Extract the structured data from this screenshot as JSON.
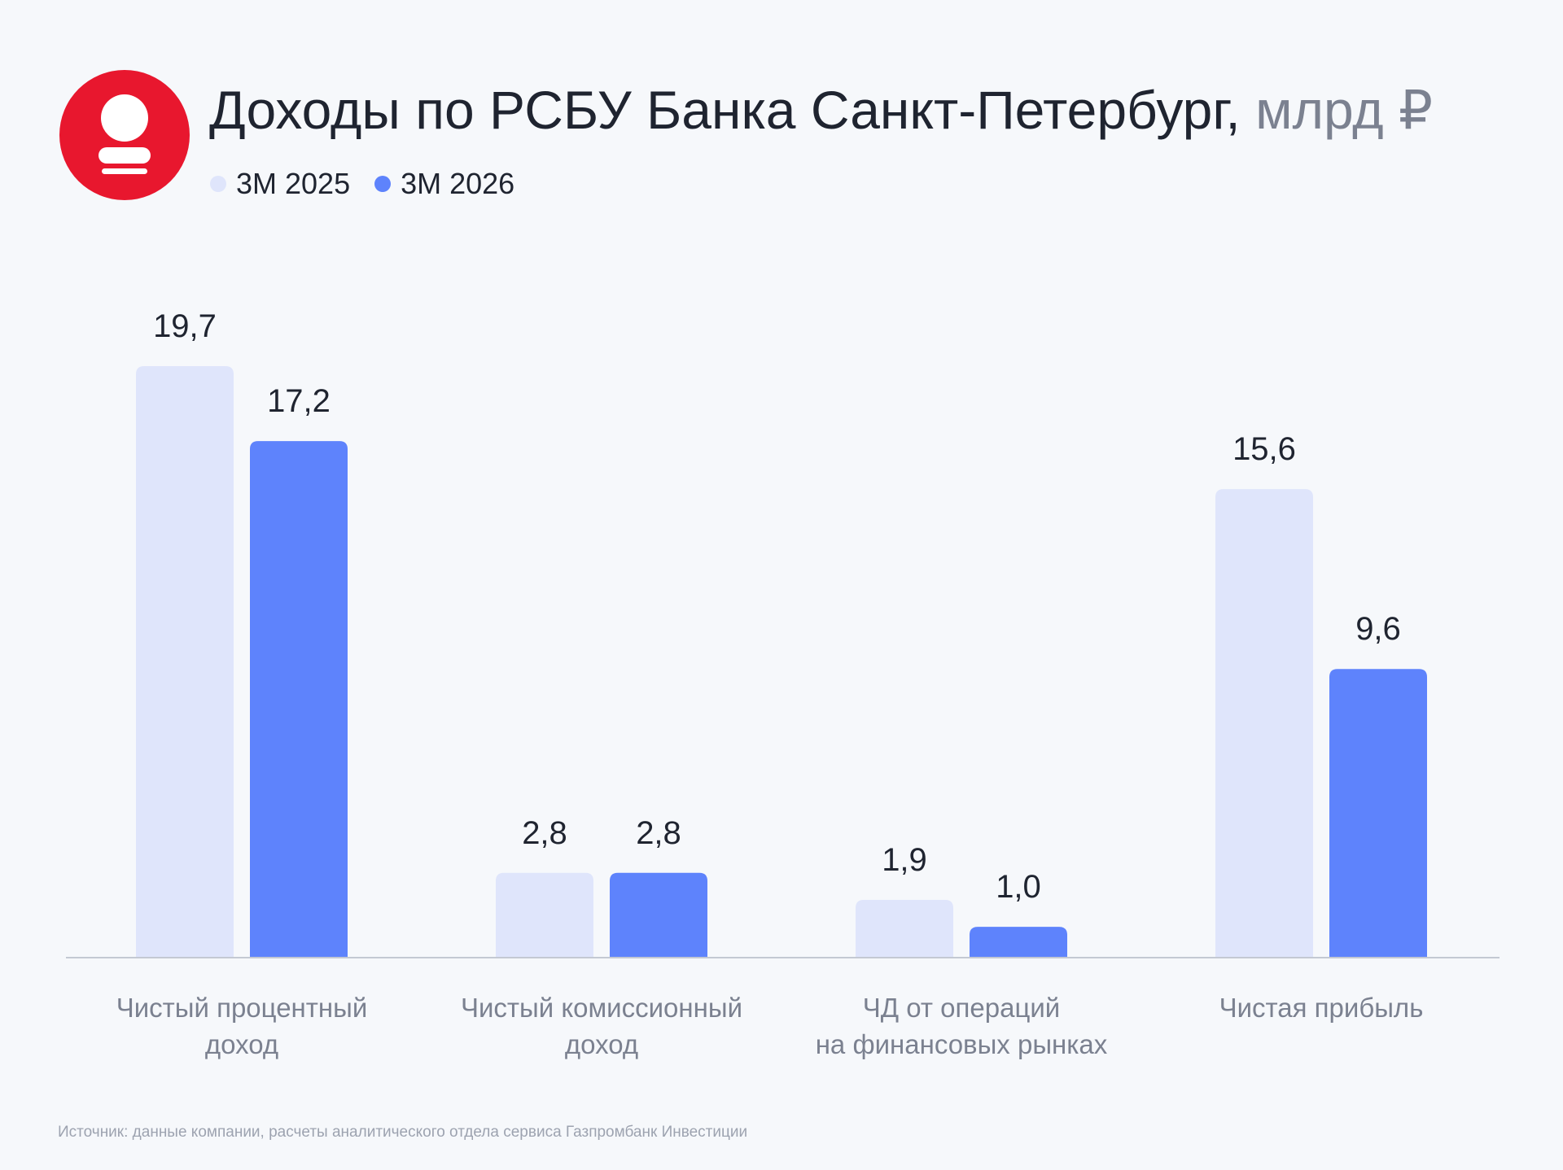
{
  "header": {
    "title_main": "Доходы по РСБУ Банка Санкт-Петербург,",
    "title_unit": "млрд ₽",
    "logo_icon": "bank-saint-petersburg-logo-icon"
  },
  "legend": [
    {
      "label": "3М 2025",
      "color": "#dfe5fb"
    },
    {
      "label": "3М 2026",
      "color": "#5e83fc"
    }
  ],
  "chart_data": {
    "type": "bar",
    "title": "Доходы по РСБУ Банка Санкт-Петербург, млрд ₽",
    "xlabel": "",
    "ylabel": "",
    "ylim": [
      0,
      19.7
    ],
    "grid": false,
    "legend_position": "top-left",
    "categories": [
      [
        "Чистый процентный",
        "доход"
      ],
      [
        "Чистый комиссионный",
        "доход"
      ],
      [
        "ЧД от операций",
        "на финансовых рынках"
      ],
      [
        "Чистая прибыль"
      ]
    ],
    "series": [
      {
        "name": "3М 2025",
        "color": "#dfe5fb",
        "values": [
          19.7,
          2.8,
          1.9,
          15.6
        ],
        "labels": [
          "19,7",
          "2,8",
          "1,9",
          "15,6"
        ]
      },
      {
        "name": "3М 2026",
        "color": "#5e83fc",
        "values": [
          17.2,
          2.8,
          1.0,
          9.6
        ],
        "labels": [
          "17,2",
          "2,8",
          "1,0",
          "9,6"
        ]
      }
    ]
  },
  "footer": {
    "source": "Источник: данные компании, расчеты аналитического отдела сервиса Газпромбанк Инвестиции"
  },
  "colors": {
    "background": "#f6f8fb",
    "brand_red": "#e8172e",
    "axis": "#c4c9d3",
    "text": "#1f2430",
    "muted_text": "#7b8190"
  }
}
